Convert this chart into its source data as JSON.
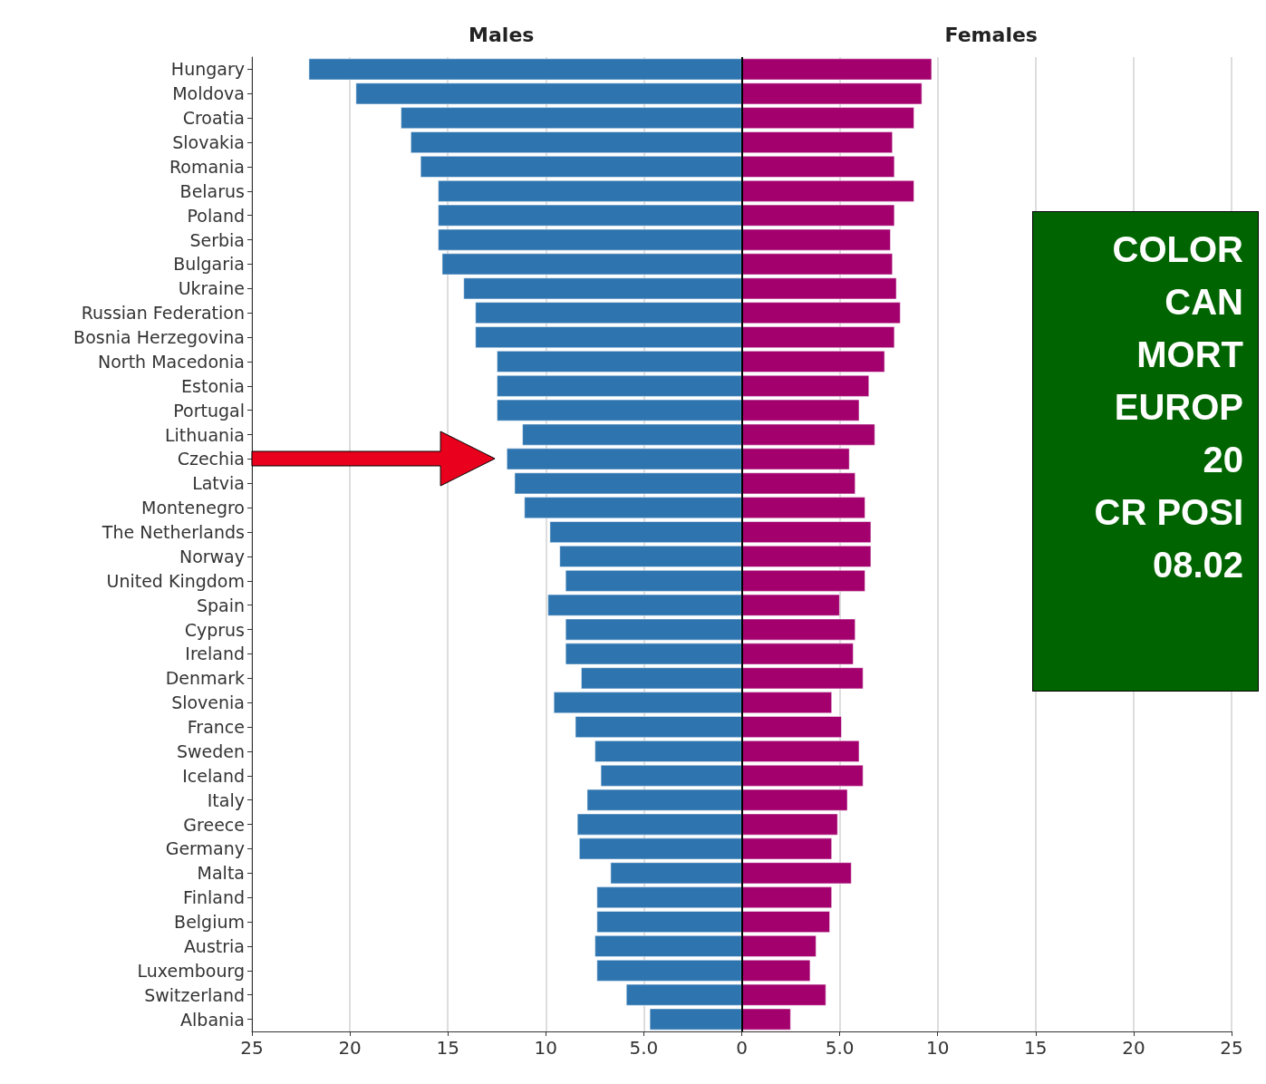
{
  "chart_data": {
    "type": "bar",
    "orientation": "horizontal",
    "categories": [
      "Hungary",
      "Moldova",
      "Croatia",
      "Slovakia",
      "Romania",
      "Belarus",
      "Poland",
      "Serbia",
      "Bulgaria",
      "Ukraine",
      "Russian Federation",
      "Bosnia Herzegovina",
      "North Macedonia",
      "Estonia",
      "Portugal",
      "Lithuania",
      "Czechia",
      "Latvia",
      "Montenegro",
      "The Netherlands",
      "Norway",
      "United Kingdom",
      "Spain",
      "Cyprus",
      "Ireland",
      "Denmark",
      "Slovenia",
      "France",
      "Sweden",
      "Iceland",
      "Italy",
      "Greece",
      "Germany",
      "Malta",
      "Finland",
      "Belgium",
      "Austria",
      "Luxembourg",
      "Switzerland",
      "Albania"
    ],
    "series": [
      {
        "name": "Males",
        "color": "#2e75b0",
        "values": [
          -22.1,
          -19.7,
          -17.4,
          -16.9,
          -16.4,
          -15.5,
          -15.5,
          -15.5,
          -15.3,
          -14.2,
          -13.6,
          -13.6,
          -12.5,
          -12.5,
          -12.5,
          -11.2,
          -12.0,
          -11.6,
          -11.1,
          -9.8,
          -9.3,
          -9.0,
          -9.9,
          -9.0,
          -9.0,
          -8.2,
          -9.6,
          -8.5,
          -7.5,
          -7.2,
          -7.9,
          -8.4,
          -8.3,
          -6.7,
          -7.4,
          -7.4,
          -7.5,
          -7.4,
          -5.9,
          -4.7
        ]
      },
      {
        "name": "Females",
        "color": "#a3006e",
        "values": [
          9.7,
          9.2,
          8.8,
          7.7,
          7.8,
          8.8,
          7.8,
          7.6,
          7.7,
          7.9,
          8.1,
          7.8,
          7.3,
          6.5,
          6.0,
          6.8,
          5.5,
          5.8,
          6.3,
          6.6,
          6.6,
          6.3,
          5.0,
          5.8,
          5.7,
          6.2,
          4.6,
          5.1,
          6.0,
          6.2,
          5.4,
          4.9,
          4.6,
          5.6,
          4.6,
          4.5,
          3.8,
          3.5,
          4.3,
          2.5
        ]
      }
    ],
    "xlim": [
      -25,
      25
    ],
    "xticks": [
      {
        "value": -25,
        "label": "25"
      },
      {
        "value": -20,
        "label": "20"
      },
      {
        "value": -15,
        "label": "15"
      },
      {
        "value": -10,
        "label": "10"
      },
      {
        "value": -5,
        "label": "5.0"
      },
      0,
      {
        "value": 5,
        "label": "5.0"
      },
      10,
      15,
      20,
      25
    ],
    "grid": "x",
    "stacked": true,
    "ref_lines": [
      {
        "axis": "x",
        "value": 0,
        "color": "#000000"
      }
    ],
    "annotations": [
      "COLOR",
      "CAN",
      "MORT",
      "EUROP",
      "20",
      "CR POSI",
      "08.02"
    ]
  }
}
